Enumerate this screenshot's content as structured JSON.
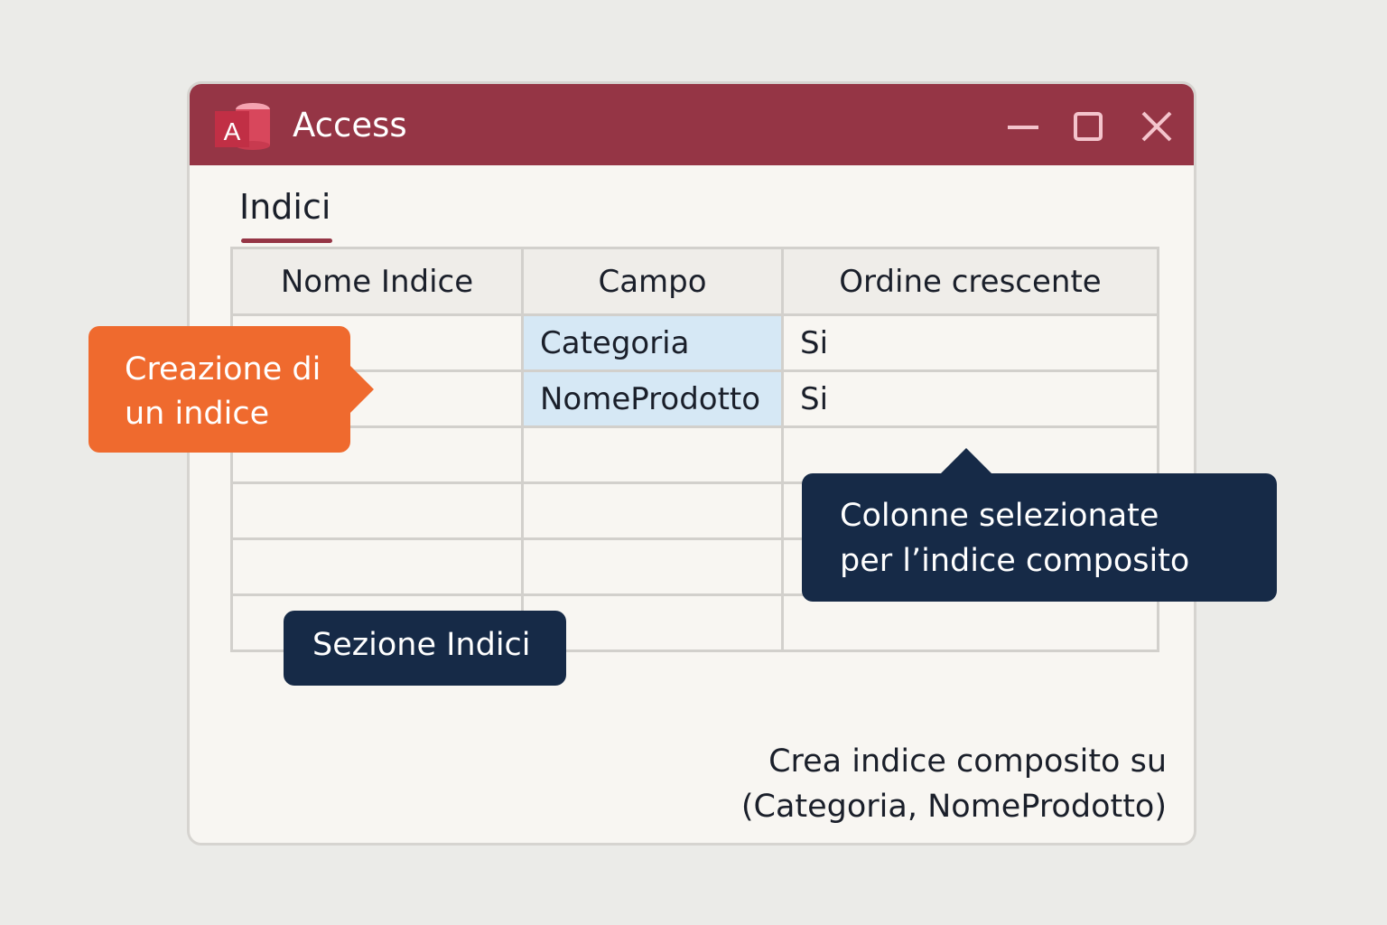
{
  "window": {
    "title": "Access",
    "logo_letter": "A",
    "accent": "#953545"
  },
  "section": {
    "title": "Indici"
  },
  "table": {
    "headers": [
      "Nome Indice",
      "Campo",
      "Ordine crescente"
    ],
    "rows": [
      [
        "",
        "Categoria",
        "Si"
      ],
      [
        "",
        "NomeProdotto",
        "Si"
      ],
      [
        "",
        "",
        ""
      ],
      [
        "",
        "",
        ""
      ],
      [
        "",
        "",
        ""
      ],
      [
        "",
        "",
        ""
      ]
    ]
  },
  "callouts": {
    "create_index": [
      "Creazione di",
      "un indice"
    ],
    "selected_columns": [
      "Colonne selezionate",
      "per l’indice composito"
    ],
    "section_label": "Sezione Indici"
  },
  "note": [
    "Crea indice composito su",
    "(Categoria, NomeProdotto)"
  ]
}
